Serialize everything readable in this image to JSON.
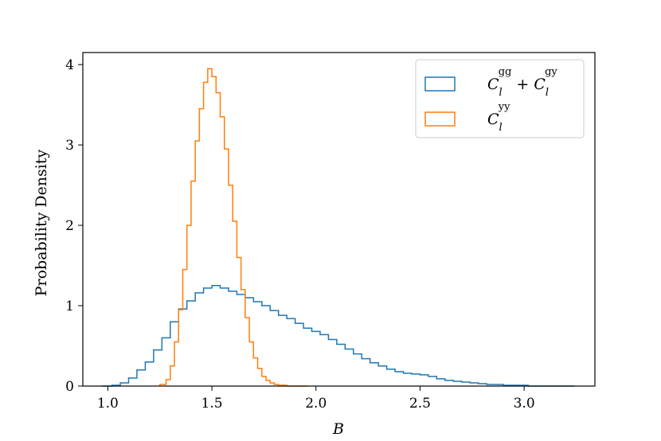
{
  "chart_data": {
    "type": "histogram",
    "xlabel": "B",
    "ylabel": "Probability Density",
    "xlim": [
      0.88,
      3.34
    ],
    "ylim": [
      0,
      4.15
    ],
    "xticks": [
      "1.0",
      "1.5",
      "2.0",
      "2.5",
      "3.0"
    ],
    "yticks": [
      "0",
      "1",
      "2",
      "3",
      "4"
    ],
    "grid": false,
    "legend_position": "top-right",
    "series": [
      {
        "name": "C_l^gg + C_l^gy",
        "legend_label": "C_l^gg + C_l^gy",
        "color": "#1f77b4",
        "bin_edges": [
          0.97,
          1.02,
          1.06,
          1.1,
          1.14,
          1.18,
          1.22,
          1.26,
          1.3,
          1.34,
          1.38,
          1.42,
          1.46,
          1.5,
          1.54,
          1.58,
          1.62,
          1.66,
          1.7,
          1.74,
          1.78,
          1.82,
          1.86,
          1.9,
          1.94,
          1.98,
          2.02,
          2.06,
          2.1,
          2.14,
          2.18,
          2.22,
          2.26,
          2.3,
          2.34,
          2.38,
          2.42,
          2.46,
          2.5,
          2.54,
          2.58,
          2.62,
          2.66,
          2.7,
          2.74,
          2.78,
          2.82,
          2.86,
          2.9,
          2.94,
          2.98,
          3.02,
          3.06,
          3.1,
          3.14,
          3.18,
          3.24
        ],
        "densities": [
          0.0,
          0.01,
          0.04,
          0.1,
          0.2,
          0.3,
          0.45,
          0.6,
          0.8,
          0.96,
          1.06,
          1.16,
          1.22,
          1.25,
          1.22,
          1.18,
          1.14,
          1.1,
          1.05,
          1.0,
          0.94,
          0.88,
          0.84,
          0.78,
          0.72,
          0.68,
          0.64,
          0.58,
          0.52,
          0.46,
          0.4,
          0.34,
          0.29,
          0.25,
          0.21,
          0.18,
          0.16,
          0.15,
          0.14,
          0.12,
          0.09,
          0.07,
          0.06,
          0.05,
          0.04,
          0.03,
          0.02,
          0.02,
          0.01,
          0.01,
          0.01,
          0.0,
          0.0,
          0.0,
          0.0,
          0.0
        ]
      },
      {
        "name": "C_l^yy",
        "legend_label": "C_l^yy",
        "color": "#ff7f0e",
        "bin_edges": [
          1.25,
          1.28,
          1.3,
          1.32,
          1.34,
          1.36,
          1.38,
          1.4,
          1.42,
          1.44,
          1.46,
          1.48,
          1.5,
          1.52,
          1.54,
          1.56,
          1.58,
          1.6,
          1.62,
          1.64,
          1.66,
          1.68,
          1.7,
          1.72,
          1.74,
          1.76,
          1.78,
          1.8,
          1.82,
          1.84,
          1.86,
          1.88,
          1.9,
          1.92,
          1.94,
          1.96
        ],
        "densities": [
          0.02,
          0.08,
          0.25,
          0.55,
          0.95,
          1.45,
          2.0,
          2.55,
          3.05,
          3.45,
          3.78,
          3.95,
          3.85,
          3.65,
          3.35,
          2.95,
          2.5,
          2.05,
          1.6,
          1.2,
          0.85,
          0.55,
          0.35,
          0.22,
          0.12,
          0.07,
          0.04,
          0.02,
          0.01,
          0.01,
          0.0,
          0.0,
          0.0,
          0.0,
          0.0
        ]
      }
    ]
  }
}
